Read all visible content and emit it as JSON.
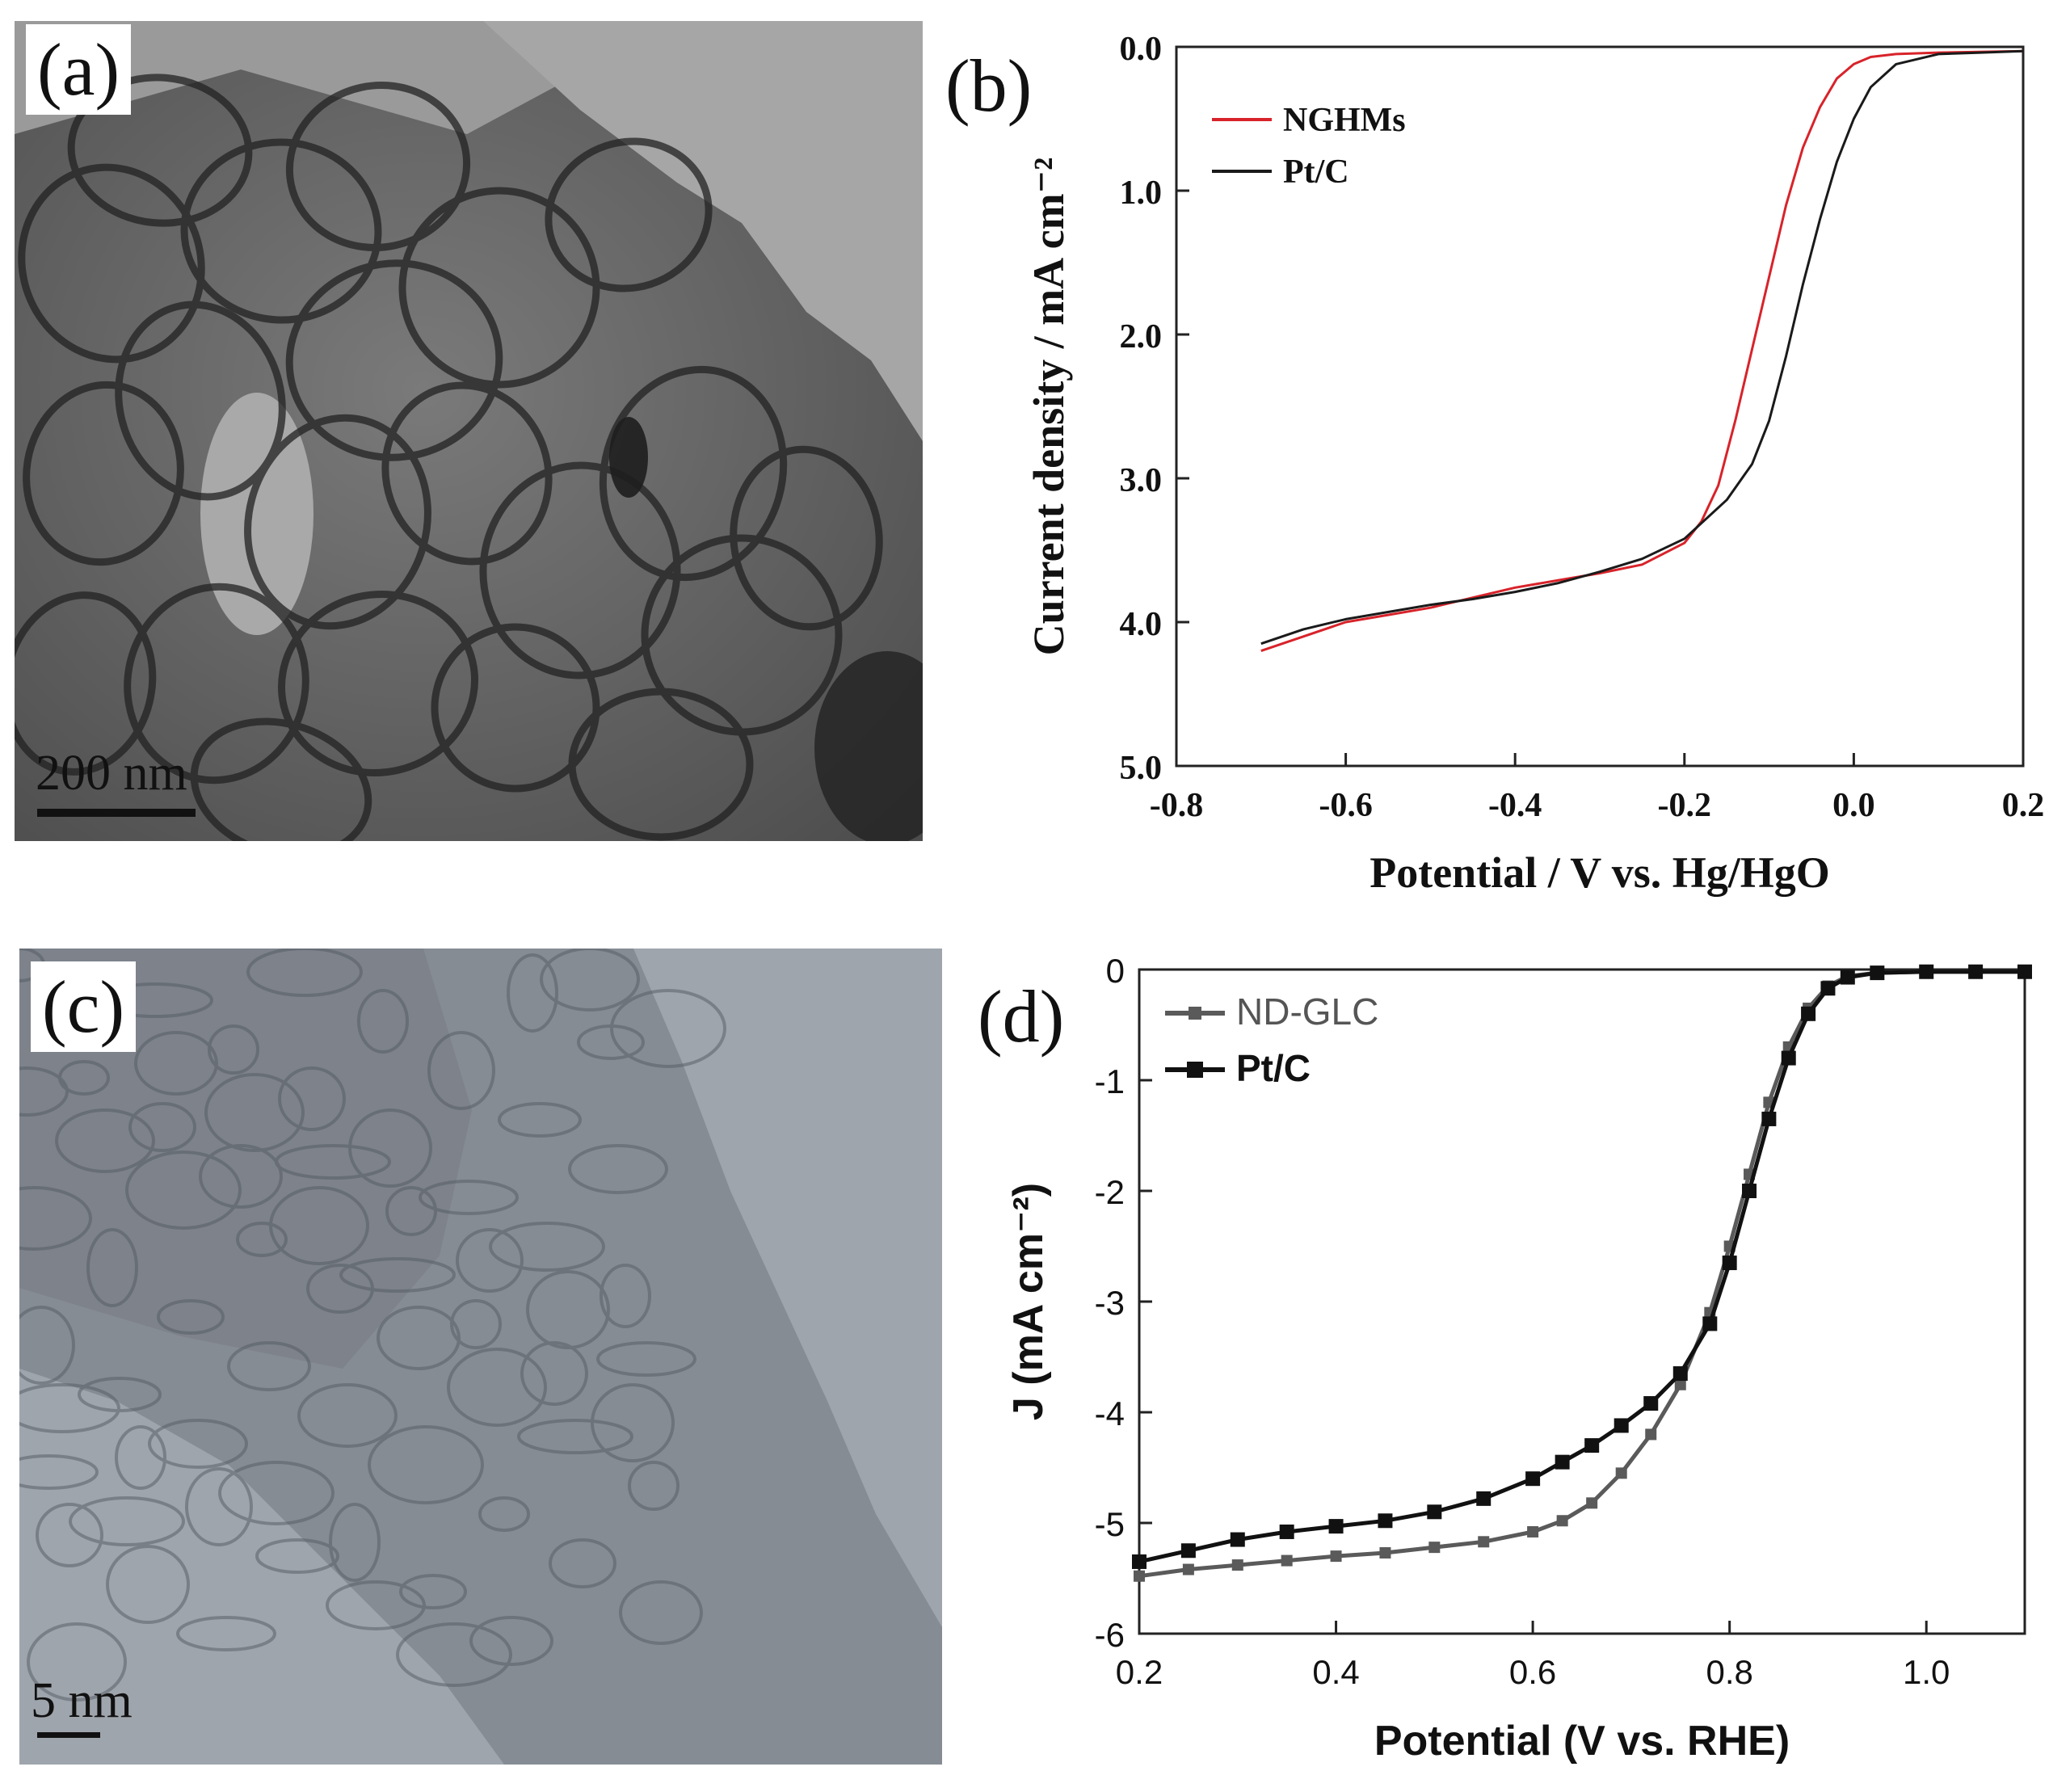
{
  "panels": {
    "a": {
      "label": "(a)",
      "scale_bar": "200 nm"
    },
    "b": {
      "label": "(b)"
    },
    "c": {
      "label": "(c)",
      "scale_bar": "5 nm"
    },
    "d": {
      "label": "(d)"
    }
  },
  "chart_data": [
    {
      "panel": "b",
      "type": "line",
      "xlabel": "Potential / V vs. Hg/HgO",
      "ylabel": "Current density / mA cm⁻²",
      "xlim": [
        -0.8,
        0.2
      ],
      "ylim": [
        0.0,
        5.0
      ],
      "y_inverted": true,
      "x_ticks": [
        "-0.8",
        "-0.6",
        "-0.4",
        "-0.2",
        "0.0",
        "0.2"
      ],
      "x_tick_values": [
        -0.8,
        -0.6,
        -0.4,
        -0.2,
        0.0,
        0.2
      ],
      "y_ticks": [
        "0.0",
        "1.0",
        "2.0",
        "3.0",
        "4.0",
        "5.0"
      ],
      "y_tick_values": [
        0.0,
        1.0,
        2.0,
        3.0,
        4.0,
        5.0
      ],
      "legend_position": "top-left",
      "colors": {
        "NGHMs": "#d8232a",
        "Pt/C": "#1a1a1a"
      },
      "series": [
        {
          "name": "NGHMs",
          "x": [
            -0.7,
            -0.65,
            -0.6,
            -0.55,
            -0.5,
            -0.45,
            -0.4,
            -0.35,
            -0.3,
            -0.25,
            -0.2,
            -0.18,
            -0.16,
            -0.14,
            -0.12,
            -0.1,
            -0.08,
            -0.06,
            -0.04,
            -0.02,
            0.0,
            0.02,
            0.05,
            0.1,
            0.2
          ],
          "y": [
            4.2,
            4.1,
            4.0,
            3.95,
            3.9,
            3.83,
            3.76,
            3.71,
            3.66,
            3.6,
            3.45,
            3.3,
            3.05,
            2.6,
            2.1,
            1.6,
            1.1,
            0.7,
            0.42,
            0.22,
            0.12,
            0.07,
            0.05,
            0.04,
            0.03
          ]
        },
        {
          "name": "Pt/C",
          "x": [
            -0.7,
            -0.65,
            -0.6,
            -0.55,
            -0.5,
            -0.45,
            -0.4,
            -0.35,
            -0.3,
            -0.25,
            -0.2,
            -0.15,
            -0.12,
            -0.1,
            -0.08,
            -0.06,
            -0.04,
            -0.02,
            0.0,
            0.02,
            0.05,
            0.1,
            0.15,
            0.2
          ],
          "y": [
            4.15,
            4.05,
            3.98,
            3.93,
            3.88,
            3.84,
            3.79,
            3.73,
            3.65,
            3.56,
            3.42,
            3.15,
            2.9,
            2.6,
            2.15,
            1.65,
            1.2,
            0.8,
            0.5,
            0.28,
            0.12,
            0.05,
            0.04,
            0.03
          ]
        }
      ]
    },
    {
      "panel": "d",
      "type": "line",
      "xlabel": "Potential (V vs. RHE)",
      "ylabel": "J (mA cm⁻²)",
      "xlim": [
        0.2,
        1.1
      ],
      "ylim": [
        -6,
        0
      ],
      "x_ticks": [
        "0.2",
        "0.4",
        "0.6",
        "0.8",
        "1.0"
      ],
      "x_tick_values": [
        0.2,
        0.4,
        0.6,
        0.8,
        1.0
      ],
      "y_ticks": [
        "0",
        "-1",
        "-2",
        "-3",
        "-4",
        "-5",
        "-6"
      ],
      "y_tick_values": [
        0,
        -1,
        -2,
        -3,
        -4,
        -5,
        -6
      ],
      "legend_position": "top-left",
      "colors": {
        "ND-GLC": "#5a5a5a",
        "Pt/C": "#111111"
      },
      "series": [
        {
          "name": "ND-GLC",
          "x": [
            0.2,
            0.25,
            0.3,
            0.35,
            0.4,
            0.45,
            0.5,
            0.55,
            0.6,
            0.63,
            0.66,
            0.69,
            0.72,
            0.75,
            0.78,
            0.8,
            0.82,
            0.84,
            0.86,
            0.88,
            0.9,
            0.92,
            0.95,
            1.0,
            1.05,
            1.1
          ],
          "y": [
            -5.48,
            -5.42,
            -5.38,
            -5.34,
            -5.3,
            -5.27,
            -5.22,
            -5.17,
            -5.08,
            -4.98,
            -4.82,
            -4.55,
            -4.2,
            -3.75,
            -3.1,
            -2.5,
            -1.85,
            -1.2,
            -0.7,
            -0.35,
            -0.15,
            -0.06,
            -0.03,
            -0.02,
            -0.02,
            -0.02
          ]
        },
        {
          "name": "Pt/C",
          "x": [
            0.2,
            0.25,
            0.3,
            0.35,
            0.4,
            0.45,
            0.5,
            0.55,
            0.6,
            0.63,
            0.66,
            0.69,
            0.72,
            0.75,
            0.78,
            0.8,
            0.82,
            0.84,
            0.86,
            0.88,
            0.9,
            0.92,
            0.95,
            1.0,
            1.05,
            1.1
          ],
          "y": [
            -5.35,
            -5.25,
            -5.15,
            -5.08,
            -5.03,
            -4.98,
            -4.9,
            -4.78,
            -4.6,
            -4.45,
            -4.3,
            -4.12,
            -3.92,
            -3.65,
            -3.2,
            -2.65,
            -2.0,
            -1.35,
            -0.8,
            -0.4,
            -0.17,
            -0.07,
            -0.03,
            -0.02,
            -0.02,
            -0.02
          ]
        }
      ]
    }
  ]
}
